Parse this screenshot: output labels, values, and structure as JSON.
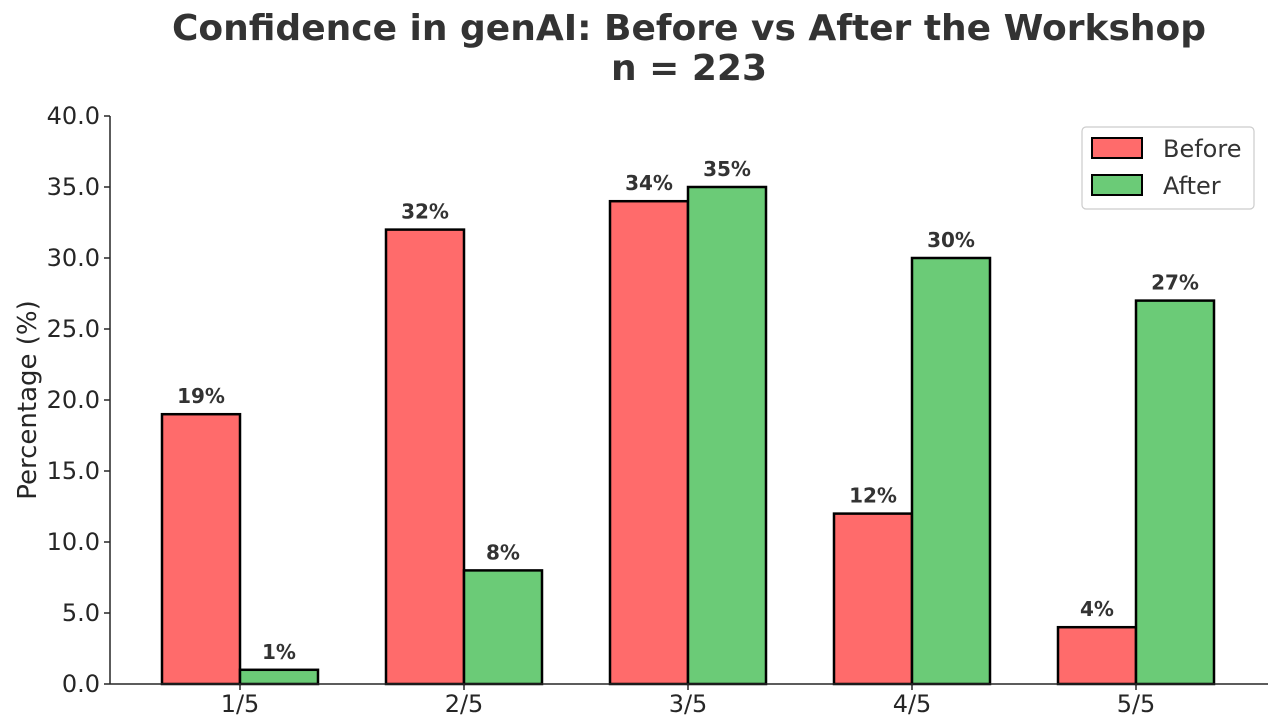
{
  "chart_data": {
    "type": "bar",
    "title": "Confidence in genAI: Before vs After the Workshop",
    "subtitle": "n = 223",
    "xlabel": "",
    "ylabel": "Percentage (%)",
    "ylim": [
      0,
      40
    ],
    "yticks": [
      "0.0",
      "5.0",
      "10.0",
      "15.0",
      "20.0",
      "25.0",
      "30.0",
      "35.0",
      "40.0"
    ],
    "categories": [
      "1/5",
      "2/5",
      "3/5",
      "4/5",
      "5/5"
    ],
    "series": [
      {
        "name": "Before",
        "color": "#ff6b6b",
        "values": [
          19,
          32,
          34,
          12,
          4
        ],
        "labels": [
          "19%",
          "32%",
          "34%",
          "12%",
          "4%"
        ]
      },
      {
        "name": "After",
        "color": "#6bcb77",
        "values": [
          1,
          8,
          35,
          30,
          27
        ],
        "labels": [
          "1%",
          "8%",
          "35%",
          "30%",
          "27%"
        ]
      }
    ],
    "grid": false,
    "legend_position": "top-right"
  }
}
